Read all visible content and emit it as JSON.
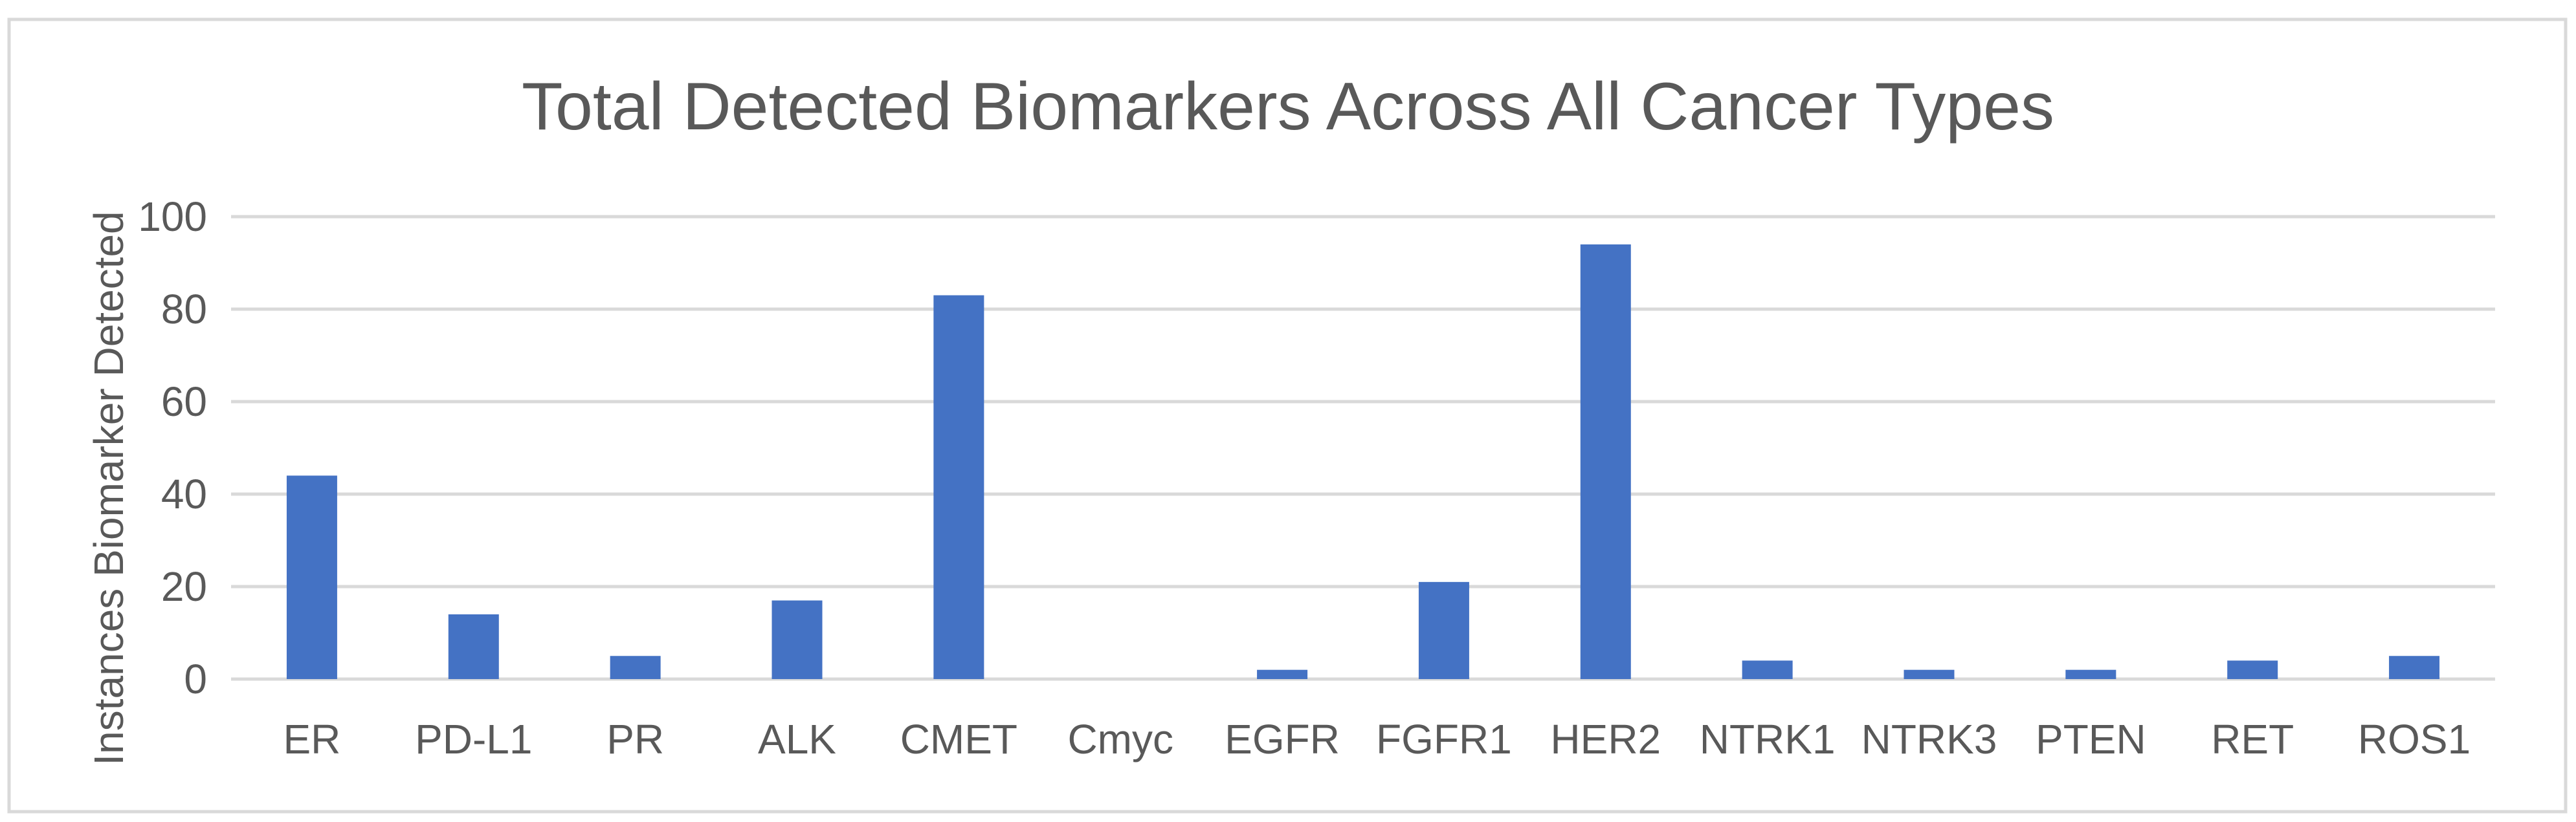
{
  "chart_data": {
    "type": "bar",
    "title": "Total Detected Biomarkers Across All Cancer Types",
    "xlabel": "",
    "ylabel": "Instances Biomarker Detected",
    "categories": [
      "ER",
      "PD-L1",
      "PR",
      "ALK",
      "CMET",
      "Cmyc",
      "EGFR",
      "FGFR1",
      "HER2",
      "NTRK1",
      "NTRK3",
      "PTEN",
      "RET",
      "ROS1"
    ],
    "values": [
      44,
      14,
      5,
      17,
      83,
      0,
      2,
      21,
      94,
      4,
      2,
      2,
      4,
      5
    ],
    "ylim": [
      0,
      100
    ],
    "yticks": [
      "0",
      "20",
      "40",
      "60",
      "80",
      "100"
    ],
    "grid": true,
    "legend": "none",
    "colors": {
      "bar": "#4472C4",
      "grid": "#D9D9D9",
      "text": "#595959",
      "border": "#D9D9D9"
    }
  }
}
